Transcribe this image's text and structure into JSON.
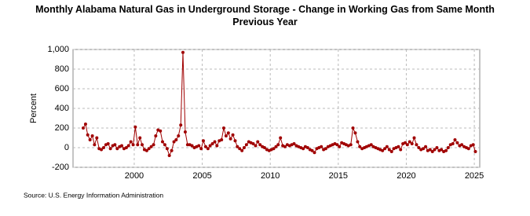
{
  "chart_data": {
    "type": "line",
    "title": "Monthly Alabama Natural Gas in Underground Storage - Change in Working Gas from Same Month Previous Year",
    "y_label": "Percent",
    "source": "Source: U.S. Energy Information Administration",
    "xlim": [
      1995.5,
      2025.4
    ],
    "xticks": [
      2000,
      2005,
      2010,
      2015,
      2020,
      2025
    ],
    "ylim": [
      -200,
      1000
    ],
    "yticks": [
      -200,
      0,
      200,
      400,
      600,
      800,
      {
        "value": 1000,
        "label": "1,000"
      }
    ],
    "grid": true,
    "x": [
      1996.25,
      1996.42,
      1996.58,
      1996.75,
      1996.92,
      1997.08,
      1997.25,
      1997.42,
      1997.58,
      1997.75,
      1997.92,
      1998.08,
      1998.25,
      1998.42,
      1998.58,
      1998.75,
      1998.92,
      1999.08,
      1999.25,
      1999.42,
      1999.58,
      1999.75,
      1999.92,
      2000.08,
      2000.25,
      2000.42,
      2000.58,
      2000.75,
      2000.92,
      2001.08,
      2001.25,
      2001.42,
      2001.58,
      2001.75,
      2001.92,
      2002.08,
      2002.25,
      2002.42,
      2002.58,
      2002.75,
      2002.92,
      2003.08,
      2003.25,
      2003.42,
      2003.58,
      2003.75,
      2003.92,
      2004.08,
      2004.25,
      2004.42,
      2004.58,
      2004.75,
      2004.92,
      2005.08,
      2005.25,
      2005.42,
      2005.58,
      2005.75,
      2005.92,
      2006.08,
      2006.25,
      2006.42,
      2006.58,
      2006.75,
      2006.92,
      2007.08,
      2007.25,
      2007.42,
      2007.58,
      2007.75,
      2007.92,
      2008.08,
      2008.25,
      2008.42,
      2008.58,
      2008.75,
      2008.92,
      2009.08,
      2009.25,
      2009.42,
      2009.58,
      2009.75,
      2009.92,
      2010.08,
      2010.25,
      2010.42,
      2010.58,
      2010.75,
      2010.92,
      2011.08,
      2011.25,
      2011.42,
      2011.58,
      2011.75,
      2011.92,
      2012.08,
      2012.25,
      2012.42,
      2012.58,
      2012.75,
      2012.92,
      2013.08,
      2013.25,
      2013.42,
      2013.58,
      2013.75,
      2013.92,
      2014.08,
      2014.25,
      2014.42,
      2014.58,
      2014.75,
      2014.92,
      2015.08,
      2015.25,
      2015.42,
      2015.58,
      2015.75,
      2015.92,
      2016.08,
      2016.25,
      2016.42,
      2016.58,
      2016.75,
      2016.92,
      2017.08,
      2017.25,
      2017.42,
      2017.58,
      2017.75,
      2017.92,
      2018.08,
      2018.25,
      2018.42,
      2018.58,
      2018.75,
      2018.92,
      2019.08,
      2019.25,
      2019.42,
      2019.58,
      2019.75,
      2019.92,
      2020.08,
      2020.25,
      2020.42,
      2020.58,
      2020.75,
      2020.92,
      2021.08,
      2021.25,
      2021.42,
      2021.58,
      2021.75,
      2021.92,
      2022.08,
      2022.25,
      2022.42,
      2022.58,
      2022.75,
      2022.92,
      2023.08,
      2023.25,
      2023.42,
      2023.58,
      2023.75,
      2023.92,
      2024.08,
      2024.25,
      2024.42,
      2024.58,
      2024.75,
      2024.92,
      2025.08
    ],
    "series": [
      {
        "color": "#a00000",
        "values": [
          200,
          240,
          130,
          80,
          120,
          30,
          100,
          -10,
          -20,
          0,
          30,
          40,
          -10,
          20,
          30,
          -10,
          10,
          20,
          -10,
          0,
          20,
          60,
          30,
          210,
          30,
          100,
          30,
          -20,
          -30,
          -10,
          10,
          30,
          120,
          180,
          170,
          60,
          30,
          -10,
          -80,
          -30,
          60,
          80,
          120,
          230,
          970,
          160,
          30,
          30,
          20,
          0,
          10,
          20,
          -10,
          70,
          10,
          -10,
          20,
          40,
          60,
          20,
          70,
          80,
          200,
          120,
          150,
          90,
          130,
          70,
          10,
          -10,
          -30,
          0,
          30,
          60,
          50,
          40,
          20,
          60,
          30,
          10,
          0,
          -20,
          -30,
          -20,
          -10,
          10,
          30,
          100,
          20,
          10,
          30,
          20,
          30,
          40,
          20,
          10,
          0,
          -10,
          10,
          0,
          -20,
          -30,
          -50,
          -10,
          0,
          10,
          -20,
          -10,
          10,
          20,
          30,
          40,
          30,
          10,
          50,
          40,
          30,
          20,
          30,
          200,
          150,
          60,
          10,
          -10,
          0,
          10,
          20,
          30,
          10,
          0,
          -10,
          -20,
          -30,
          -10,
          10,
          -20,
          -40,
          -10,
          0,
          10,
          -20,
          40,
          50,
          30,
          60,
          40,
          100,
          30,
          0,
          -20,
          -10,
          10,
          -30,
          -20,
          -40,
          -20,
          0,
          -30,
          -20,
          -40,
          -30,
          0,
          30,
          40,
          80,
          50,
          20,
          30,
          10,
          0,
          -10,
          20,
          30,
          -40
        ]
      }
    ]
  }
}
